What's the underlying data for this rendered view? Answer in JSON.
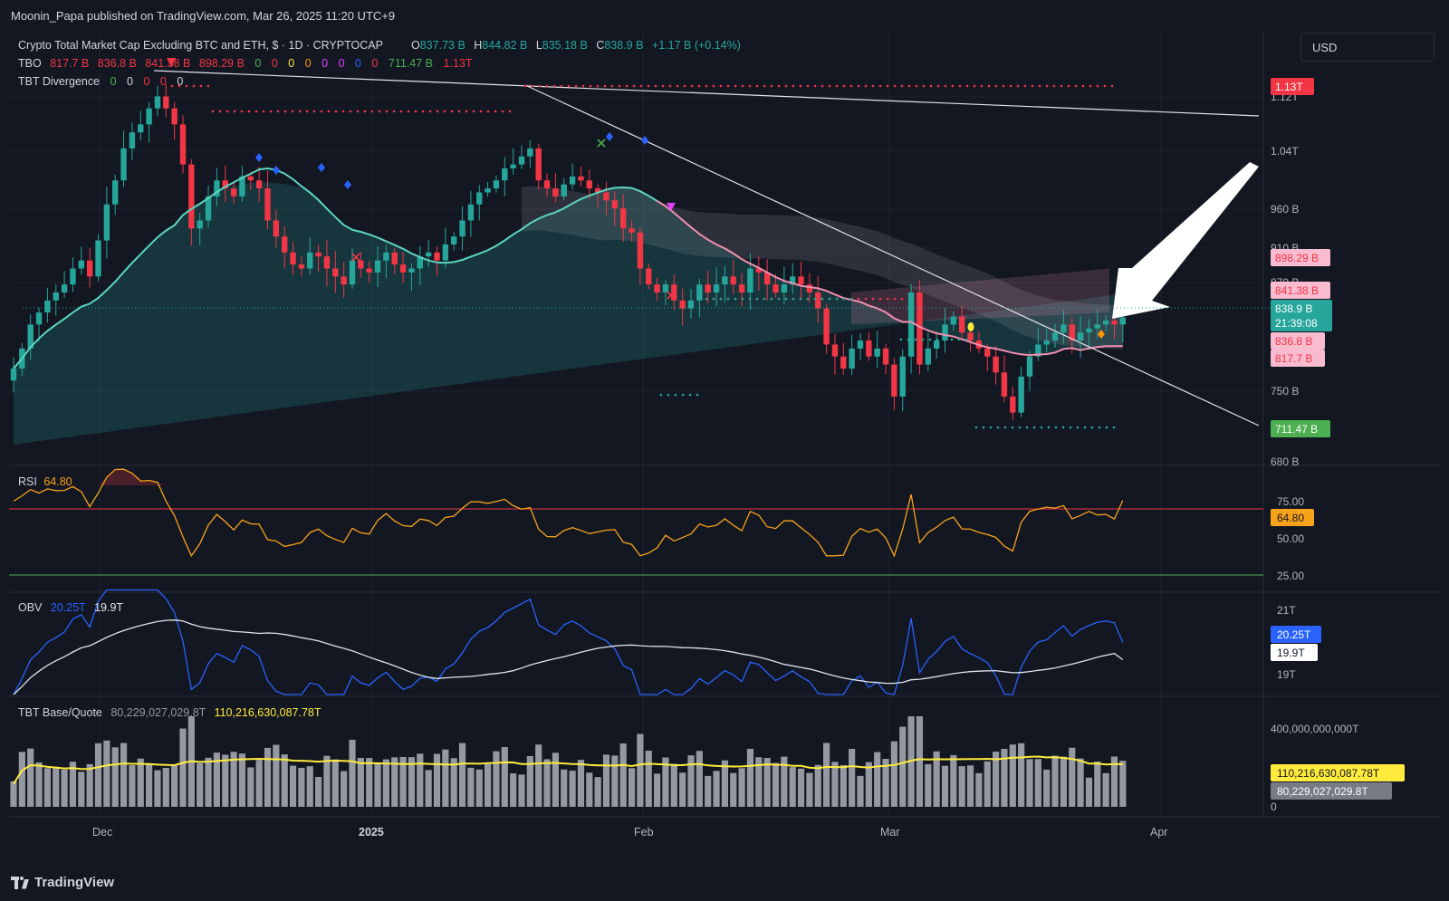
{
  "header": {
    "published": "Moonin_Papa published on TradingView.com, Mar 26, 2025 11:20 UTC+9"
  },
  "currency_button": "USD",
  "footer": {
    "brand": "TradingView"
  },
  "legend": {
    "symbol": "Crypto Total Market Cap Excluding BTC and ETH, $ · 1D · CRYPTOCAP",
    "open_label": "O",
    "open": "837.73 B",
    "high_label": "H",
    "high": "844.82 B",
    "low_label": "L",
    "low": "835.18 B",
    "close_label": "C",
    "close": "838.9 B",
    "change": "+1.17 B (+0.14%)",
    "tbo_label": "TBO",
    "tbo_values": [
      "817.7 B",
      "836.8 B",
      "841.38 B",
      "898.29 B"
    ],
    "tbo_zeros": [
      "0",
      "0",
      "0",
      "0",
      "0",
      "0",
      "0",
      "0"
    ],
    "tbo_tail": [
      "711.47 B",
      "1.13T"
    ],
    "tbt_div_label": "TBT Divergence",
    "tbt_div_values": [
      "0",
      "0",
      "0",
      "0",
      "0"
    ]
  },
  "price_axis": {
    "ticks": [
      "1.12T",
      "1.04T",
      "960 B",
      "910 B",
      "870 B",
      "750 B",
      "680 B"
    ],
    "badges": {
      "top": "1.13T",
      "b898": "898.29 B",
      "b841": "841.38 B",
      "last": "838.9 B",
      "countdown": "21:39:08",
      "b836": "836.8 B",
      "b817": "817.7 B",
      "bottom": "711.47 B"
    }
  },
  "rsi": {
    "label": "RSI",
    "value": "64.80",
    "ticks": [
      "75.00",
      "50.00",
      "25.00"
    ],
    "badge": "64.80"
  },
  "obv": {
    "label": "OBV",
    "value": "20.25T",
    "ma": "19.9T",
    "ticks": [
      "21T",
      "19T"
    ],
    "badge_value": "20.25T",
    "badge_ma": "19.9T"
  },
  "volume": {
    "label": "TBT Base/Quote",
    "value": "80,229,027,029.8T",
    "ma": "110,216,630,087.78T",
    "ticks": [
      "400,000,000,000T",
      "0"
    ],
    "badge_ma": "110,216,630,087.78T",
    "badge_value": "80,229,027,029.8T"
  },
  "time_axis": [
    "Dec",
    "2025",
    "Feb",
    "Mar",
    "Apr"
  ],
  "colors": {
    "up": "#26a69a",
    "down": "#f23645",
    "bg": "#131722",
    "ma_fast": "#5cd6c0",
    "ma_slow": "#f48fb1",
    "rsi": "#f7a21b",
    "obv": "#2962ff",
    "vol_ma": "#ffeb3b",
    "vol_bar": "#9598a1"
  },
  "chart_data": {
    "type": "candlestick",
    "title": "Crypto Total Market Cap Excluding BTC and ETH, $ · 1D · CRYPTOCAP",
    "unit": "B USD",
    "x_range": [
      "2024-11-25",
      "2025-03-26"
    ],
    "ylim": [
      680,
      1130
    ],
    "last_ohlc": {
      "open": 837.73,
      "high": 844.82,
      "low": 835.18,
      "close": 838.9
    },
    "close_series": [
      775,
      800,
      830,
      845,
      860,
      870,
      880,
      900,
      910,
      890,
      935,
      980,
      1010,
      1050,
      1070,
      1080,
      1100,
      1115,
      1100,
      1080,
      1030,
      950,
      960,
      990,
      1010,
      1000,
      990,
      1015,
      1010,
      1000,
      960,
      940,
      920,
      905,
      900,
      920,
      915,
      900,
      890,
      880,
      910,
      900,
      895,
      910,
      920,
      905,
      895,
      900,
      915,
      920,
      910,
      930,
      940,
      960,
      980,
      995,
      1000,
      1010,
      1025,
      1030,
      1040,
      1050,
      1010,
      1000,
      990,
      1005,
      1015,
      1010,
      1000,
      995,
      985,
      975,
      950,
      945,
      900,
      880,
      870,
      880,
      860,
      850,
      860,
      880,
      870,
      880,
      890,
      880,
      870,
      900,
      895,
      880,
      870,
      880,
      890,
      880,
      870,
      850,
      805,
      790,
      775,
      800,
      810,
      790,
      800,
      780,
      740,
      790,
      870,
      780,
      800,
      810,
      830,
      840,
      820,
      810,
      800,
      790,
      770,
      740,
      720,
      765,
      790,
      805,
      810,
      820,
      830,
      810,
      820,
      825,
      830,
      835,
      830,
      838.9
    ],
    "resistance_lines": [
      {
        "from": [
          "2024-12-06",
          1130
        ],
        "to": [
          "2025-04-06",
          1100
        ]
      },
      {
        "from": [
          "2025-01-17",
          1125
        ],
        "to": [
          "2025-04-06",
          770
        ]
      }
    ],
    "levels": [
      1130,
      898.29,
      841.38,
      836.8,
      817.7,
      711.47
    ],
    "rsi": {
      "ylim": [
        10,
        90
      ],
      "levels": [
        75,
        50,
        25
      ],
      "last": 64.8
    },
    "obv": {
      "unit": "T",
      "last": 20.25,
      "ma_last": 19.9
    },
    "volume": {
      "ma_last": 110216630087.78,
      "last": 80229027029.8
    }
  }
}
